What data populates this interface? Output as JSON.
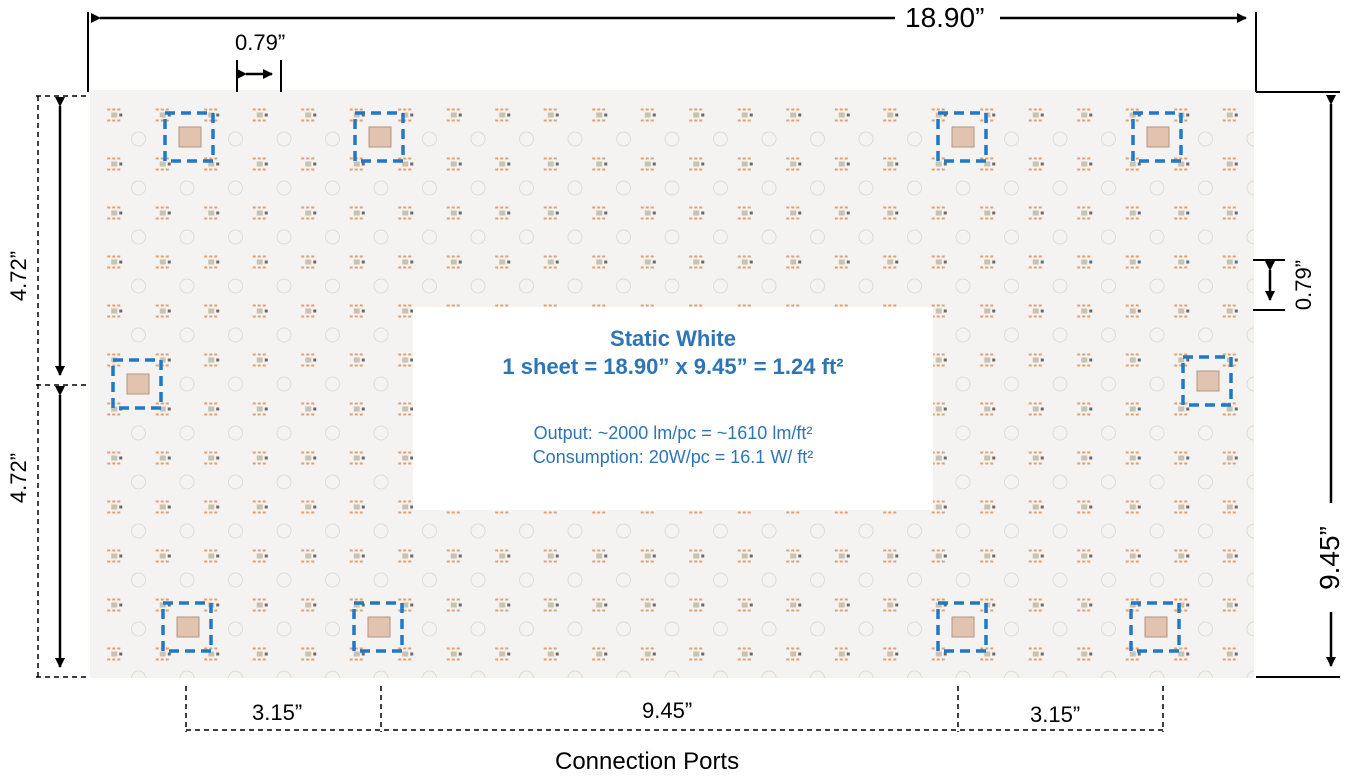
{
  "diagram": {
    "panel_type": "Static White",
    "sheet_formula": "1 sheet = 18.90” x 9.45” =  1.24 ft²",
    "output": "Output: ~2000 lm/pc = ~1610 lm/ft²",
    "consumption": "Consumption: 20W/pc = 16.1 W/ ft²"
  },
  "dimensions": {
    "total_width": "18.90”",
    "total_height": "9.45”",
    "led_pitch_horizontal": "0.79”",
    "led_pitch_vertical": "0.79”",
    "half_height_upper": "4.72”",
    "half_height_lower": "4.72”",
    "port_offset_left": "3.15”",
    "port_spacing_middle": "9.45”",
    "port_offset_right": "3.15”"
  },
  "caption": "Connection Ports",
  "colors": {
    "accent_blue": "#2e75b6",
    "port_marker": "#1f78c8",
    "panel_bg": "#f4f3f1",
    "led_amber": "#e0a070"
  }
}
